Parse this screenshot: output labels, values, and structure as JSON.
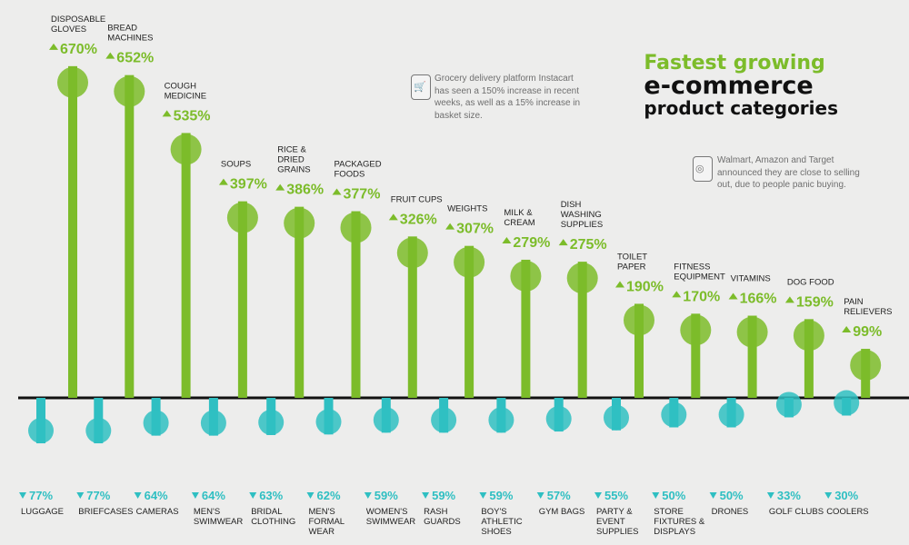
{
  "colors": {
    "growth": "#7cbc2a",
    "decline": "#2fbfc2",
    "axis": "#111111",
    "label": "#222222",
    "background": "#ededec"
  },
  "title": {
    "line1": "Fastest growing",
    "line2": "e-commerce",
    "line3": "product categories"
  },
  "notes": [
    {
      "icon": "shopping-cart-icon",
      "text": "Grocery delivery platform Instacart has seen a 150% increase in recent weeks, as well as a 15% increase in basket size."
    },
    {
      "icon": "toilet-paper-icon",
      "text": "Walmart, Amazon and Target announced they are close to selling out, due to people panic buying."
    }
  ],
  "chart_data": {
    "type": "bar",
    "unit": "%",
    "growth": [
      {
        "label": "DISPOSABLE GLOVES",
        "value": 670,
        "display": "670%"
      },
      {
        "label": "BREAD MACHINES",
        "value": 652,
        "display": "652%"
      },
      {
        "label": "COUGH MEDICINE",
        "value": 535,
        "display": "535%"
      },
      {
        "label": "SOUPS",
        "value": 397,
        "display": "397%"
      },
      {
        "label": "RICE & DRIED GRAINS",
        "value": 386,
        "display": "386%"
      },
      {
        "label": "PACKAGED FOODS",
        "value": 377,
        "display": "377%"
      },
      {
        "label": "FRUIT CUPS",
        "value": 326,
        "display": "326%"
      },
      {
        "label": "WEIGHTS",
        "value": 307,
        "display": "307%"
      },
      {
        "label": "MILK & CREAM",
        "value": 279,
        "display": "279%"
      },
      {
        "label": "DISH WASHING SUPPLIES",
        "value": 275,
        "display": "275%"
      },
      {
        "label": "TOILET PAPER",
        "value": 190,
        "display": "190%"
      },
      {
        "label": "FITNESS EQUIPMENT",
        "value": 170,
        "display": "170%"
      },
      {
        "label": "VITAMINS",
        "value": 166,
        "display": "166%"
      },
      {
        "label": "DOG FOOD",
        "value": 159,
        "display": "159%"
      },
      {
        "label": "PAIN RELIEVERS",
        "value": 99,
        "display": "99%"
      }
    ],
    "decline": [
      {
        "label": "LUGGAGE",
        "value": -77,
        "display": "77%"
      },
      {
        "label": "BRIEFCASES",
        "value": -77,
        "display": "77%"
      },
      {
        "label": "CAMERAS",
        "value": -64,
        "display": "64%"
      },
      {
        "label": "MEN'S SWIMWEAR",
        "value": -64,
        "display": "64%"
      },
      {
        "label": "BRIDAL CLOTHING",
        "value": -63,
        "display": "63%"
      },
      {
        "label": "MEN'S FORMAL WEAR",
        "value": -62,
        "display": "62%"
      },
      {
        "label": "WOMEN'S SWIMWEAR",
        "value": -59,
        "display": "59%"
      },
      {
        "label": "RASH GUARDS",
        "value": -59,
        "display": "59%"
      },
      {
        "label": "BOY'S ATHLETIC SHOES",
        "value": -59,
        "display": "59%"
      },
      {
        "label": "GYM BAGS",
        "value": -57,
        "display": "57%"
      },
      {
        "label": "PARTY & EVENT SUPPLIES",
        "value": -55,
        "display": "55%"
      },
      {
        "label": "STORE FIXTURES & DISPLAYS",
        "value": -50,
        "display": "50%"
      },
      {
        "label": "DRONES",
        "value": -50,
        "display": "50%"
      },
      {
        "label": "GOLF CLUBS",
        "value": -33,
        "display": "33%"
      },
      {
        "label": "COOLERS",
        "value": -30,
        "display": "30%"
      }
    ]
  }
}
